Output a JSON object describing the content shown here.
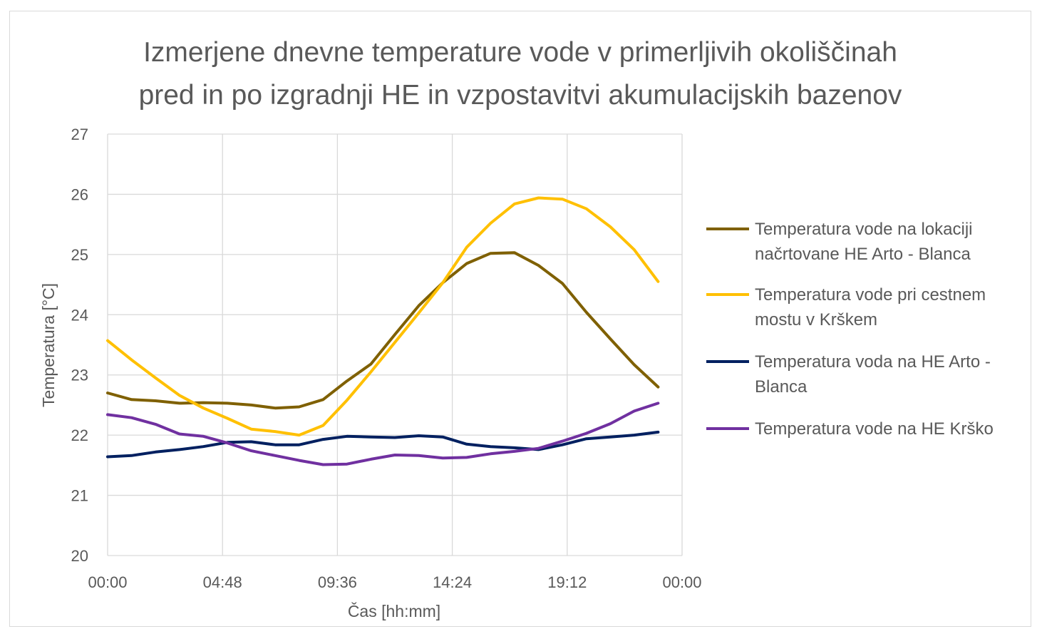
{
  "chart_data": {
    "type": "line",
    "title": "Izmerjene dnevne temperature vode v primerljivih okoliščinah pred in po izgradnji HE in vzpostavitvi akumulacijskih bazenov",
    "title_lines": [
      "Izmerjene dnevne temperature vode v primerljivih okoliščinah",
      "pred in po izgradnji HE in vzpostavitvi akumulacijskih bazenov"
    ],
    "xlabel": "Čas [hh:mm]",
    "ylabel": "Temperatura [°C]",
    "xlim_hours": [
      0,
      24
    ],
    "x_tick_labels": [
      "00:00",
      "04:48",
      "09:36",
      "14:24",
      "19:12",
      "00:00"
    ],
    "ylim": [
      20,
      27
    ],
    "y_ticks": [
      20,
      21,
      22,
      23,
      24,
      25,
      26,
      27
    ],
    "grid": true,
    "legend_position": "right",
    "x": [
      "00:00",
      "01:00",
      "02:00",
      "03:00",
      "04:00",
      "05:00",
      "06:00",
      "07:00",
      "08:00",
      "09:00",
      "10:00",
      "11:00",
      "12:00",
      "13:00",
      "14:00",
      "15:00",
      "16:00",
      "17:00",
      "18:00",
      "19:00",
      "20:00",
      "21:00",
      "22:00",
      "23:00"
    ],
    "series": [
      {
        "name": "Temperatura vode na lokaciji načrtovane HE Arto - Blanca",
        "legend_lines": [
          "Temperatura vode na lokaciji",
          "načrtovane HE Arto - Blanca"
        ],
        "color": "#7f6000",
        "values": [
          22.7,
          22.59,
          22.57,
          22.53,
          22.54,
          22.53,
          22.5,
          22.45,
          22.47,
          22.59,
          22.9,
          23.18,
          23.67,
          24.15,
          24.53,
          24.85,
          25.02,
          25.03,
          24.82,
          24.52,
          24.04,
          23.6,
          23.17,
          22.8
        ]
      },
      {
        "name": "Temperatura vode pri cestnem mostu v Krškem",
        "legend_lines": [
          "Temperatura vode pri cestnem",
          "mostu v Krškem"
        ],
        "color": "#ffc000",
        "values": [
          23.57,
          23.25,
          22.95,
          22.66,
          22.45,
          22.28,
          22.1,
          22.06,
          22.0,
          22.16,
          22.58,
          23.05,
          23.54,
          24.03,
          24.53,
          25.12,
          25.52,
          25.84,
          25.94,
          25.92,
          25.76,
          25.46,
          25.08,
          24.55
        ]
      },
      {
        "name": "Temperatura voda na HE Arto - Blanca",
        "legend_lines": [
          "Temperatura voda na HE Arto -",
          "Blanca"
        ],
        "color": "#002060",
        "values": [
          21.64,
          21.66,
          21.72,
          21.76,
          21.81,
          21.88,
          21.89,
          21.84,
          21.84,
          21.93,
          21.98,
          21.97,
          21.96,
          21.99,
          21.97,
          21.85,
          21.81,
          21.79,
          21.76,
          21.84,
          21.94,
          21.97,
          22.0,
          22.05
        ]
      },
      {
        "name": "Temperatura vode na HE Krško",
        "legend_lines": [
          "Temperatura vode na HE Krško"
        ],
        "color": "#7030a0",
        "values": [
          22.34,
          22.29,
          22.18,
          22.02,
          21.98,
          21.87,
          21.74,
          21.66,
          21.58,
          21.51,
          21.52,
          21.6,
          21.67,
          21.66,
          21.62,
          21.63,
          21.69,
          21.73,
          21.78,
          21.9,
          22.03,
          22.19,
          22.4,
          22.53
        ]
      }
    ]
  }
}
